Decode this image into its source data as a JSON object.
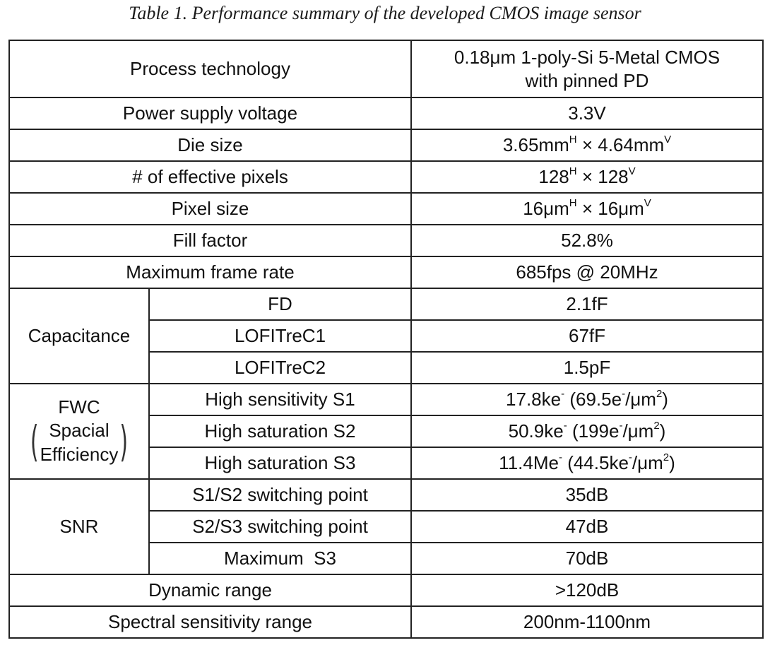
{
  "caption": "Table 1. Performance summary of the developed CMOS image sensor",
  "rows": {
    "process": {
      "label": "Process technology",
      "value_line1": "0.18μm 1-poly-Si 5-Metal CMOS",
      "value_line2": "with pinned PD"
    },
    "supply": {
      "label": "Power supply voltage",
      "value": "3.3V"
    },
    "die": {
      "label": "Die size",
      "v1": "3.65mm",
      "s1": "H",
      "mid": " × ",
      "v2": "4.64mm",
      "s2": "V"
    },
    "pixels": {
      "label": "# of effective pixels",
      "v1": "128",
      "s1": "H",
      "mid": " × ",
      "v2": "128",
      "s2": "V"
    },
    "pixsize": {
      "label": "Pixel size",
      "v1": "16μm",
      "s1": "H",
      "mid": " × ",
      "v2": "16μm",
      "s2": "V"
    },
    "fill": {
      "label": "Fill factor",
      "value": "52.8%"
    },
    "frame": {
      "label": "Maximum frame rate",
      "value": "685fps @ 20MHz"
    },
    "capacitance": {
      "group": "Capacitance",
      "items": [
        {
          "label": "FD",
          "value": "2.1fF"
        },
        {
          "label": "LOFITreC1",
          "value": "67fF"
        },
        {
          "label": "LOFITreC2",
          "value": "1.5pF"
        }
      ]
    },
    "fwc": {
      "group_line1": "FWC",
      "group_line2": "Spacial",
      "group_line3": "Efficiency",
      "items": [
        {
          "label": "High sensitivity S1",
          "a": "17.8ke",
          "b": " (69.5e",
          "c": "/μm",
          "d": ")"
        },
        {
          "label": "High saturation S2",
          "a": "50.9ke",
          "b": " (199e",
          "c": "/μm",
          "d": ")"
        },
        {
          "label": "High saturation S3",
          "a": "11.4Me",
          "b": " (44.5ke",
          "c": "/μm",
          "d": ")"
        }
      ],
      "minus": "-",
      "sq": "2"
    },
    "snr": {
      "group": "SNR",
      "items": [
        {
          "label": "S1/S2 switching point",
          "value": "35dB"
        },
        {
          "label": "S2/S3 switching point",
          "value": "47dB"
        },
        {
          "label": "Maximum  S3",
          "value": "70dB"
        }
      ]
    },
    "dynamic": {
      "label": "Dynamic range",
      "value": ">120dB"
    },
    "spectral": {
      "label": "Spectral sensitivity range",
      "value": "200nm-1100nm"
    }
  }
}
